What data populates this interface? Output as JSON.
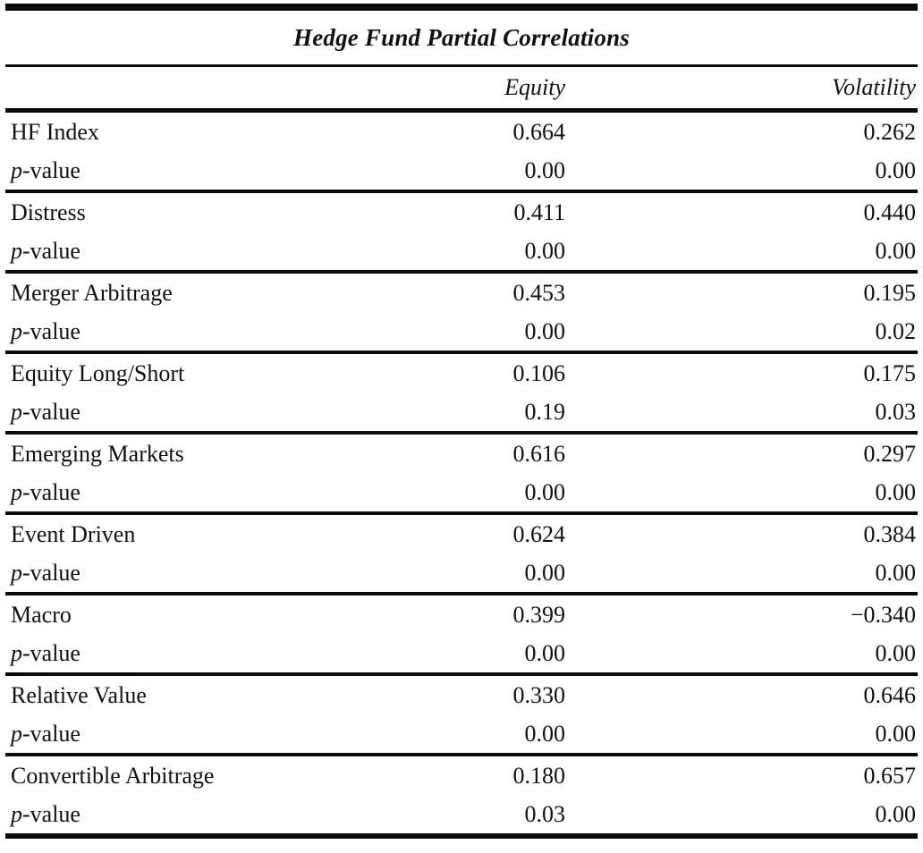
{
  "chart_data": {
    "type": "table",
    "title": "Hedge Fund Partial Correlations",
    "columns": [
      "",
      "Equity",
      "Volatility"
    ],
    "rows": [
      [
        "HF Index",
        "0.664",
        "0.262"
      ],
      [
        "p-value",
        "0.00",
        "0.00"
      ],
      [
        "Distress",
        "0.411",
        "0.440"
      ],
      [
        "p-value",
        "0.00",
        "0.00"
      ],
      [
        "Merger Arbitrage",
        "0.453",
        "0.195"
      ],
      [
        "p-value",
        "0.00",
        "0.02"
      ],
      [
        "Equity Long/Short",
        "0.106",
        "0.175"
      ],
      [
        "p-value",
        "0.19",
        "0.03"
      ],
      [
        "Emerging Markets",
        "0.616",
        "0.297"
      ],
      [
        "p-value",
        "0.00",
        "0.00"
      ],
      [
        "Event Driven",
        "0.624",
        "0.384"
      ],
      [
        "p-value",
        "0.00",
        "0.00"
      ],
      [
        "Macro",
        "0.399",
        "−0.340"
      ],
      [
        "p-value",
        "0.00",
        "0.00"
      ],
      [
        "Relative Value",
        "0.330",
        "0.646"
      ],
      [
        "p-value",
        "0.00",
        "0.00"
      ],
      [
        "Convertible Arbitrage",
        "0.180",
        "0.657"
      ],
      [
        "p-value",
        "0.03",
        "0.00"
      ]
    ]
  },
  "table": {
    "title": "Hedge Fund Partial Correlations",
    "col_equity": "Equity",
    "col_volatility": "Volatility",
    "pvalue_italic": "p",
    "pvalue_rest": "-value",
    "text_color": "#111111",
    "rule_color": "#0a0a0a",
    "groups": [
      {
        "label": "HF Index",
        "equity": "0.664",
        "volatility": "0.262",
        "p_equity": "0.00",
        "p_volatility": "0.00"
      },
      {
        "label": "Distress",
        "equity": "0.411",
        "volatility": "0.440",
        "p_equity": "0.00",
        "p_volatility": "0.00"
      },
      {
        "label": "Merger Arbitrage",
        "equity": "0.453",
        "volatility": "0.195",
        "p_equity": "0.00",
        "p_volatility": "0.02"
      },
      {
        "label": "Equity Long/Short",
        "equity": "0.106",
        "volatility": "0.175",
        "p_equity": "0.19",
        "p_volatility": "0.03"
      },
      {
        "label": "Emerging Markets",
        "equity": "0.616",
        "volatility": "0.297",
        "p_equity": "0.00",
        "p_volatility": "0.00"
      },
      {
        "label": "Event Driven",
        "equity": "0.624",
        "volatility": "0.384",
        "p_equity": "0.00",
        "p_volatility": "0.00"
      },
      {
        "label": "Macro",
        "equity": "0.399",
        "volatility": "−0.340",
        "p_equity": "0.00",
        "p_volatility": "0.00"
      },
      {
        "label": "Relative Value",
        "equity": "0.330",
        "volatility": "0.646",
        "p_equity": "0.00",
        "p_volatility": "0.00"
      },
      {
        "label": "Convertible Arbitrage",
        "equity": "0.180",
        "volatility": "0.657",
        "p_equity": "0.03",
        "p_volatility": "0.00"
      }
    ]
  }
}
